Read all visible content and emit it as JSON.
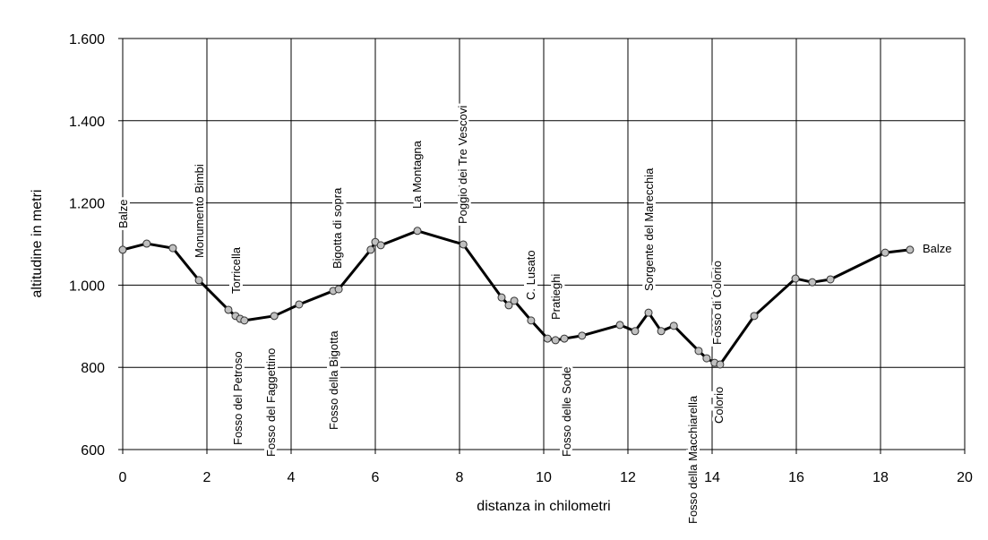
{
  "chart_data": {
    "type": "line",
    "xlabel": "distanza in chilometri",
    "ylabel": "altitudine  in metri",
    "x": [
      0,
      0.57,
      1.19,
      1.81,
      2.51,
      2.68,
      2.79,
      2.89,
      3.6,
      4.19,
      5.0,
      5.13,
      5.89,
      6.0,
      6.13,
      7.0,
      8.09,
      9.0,
      9.17,
      9.3,
      9.7,
      10.09,
      10.28,
      10.49,
      10.91,
      11.81,
      12.17,
      12.49,
      12.79,
      13.09,
      13.68,
      13.87,
      14.06,
      14.19,
      15.0,
      15.98,
      16.38,
      16.81,
      18.11,
      18.7
    ],
    "series": [
      {
        "color": "#000000",
        "marker_color": "#c0c0c0",
        "values": [
          1086,
          1101,
          1090,
          1012,
          940,
          925,
          918,
          914,
          925,
          953,
          986,
          990,
          1086,
          1105,
          1097,
          1132,
          1099,
          970,
          951,
          962,
          914,
          870,
          866,
          870,
          877,
          903,
          888,
          933,
          888,
          901,
          840,
          822,
          811,
          807,
          925,
          1016,
          1007,
          1014,
          1079,
          1086
        ]
      }
    ],
    "xlim": [
      0,
      20
    ],
    "xticks": [
      0,
      2,
      4,
      6,
      8,
      10,
      12,
      14,
      16,
      18,
      20
    ],
    "ylim": [
      600,
      1600
    ],
    "yticks": [
      600,
      800,
      {
        "value": 1000,
        "label": "1.000"
      },
      {
        "value": 1200,
        "label": "1.200"
      },
      {
        "value": 1400,
        "label": "1.400"
      },
      {
        "value": 1600,
        "label": "1.600"
      }
    ],
    "grid": true,
    "annotations": [
      "Balze",
      "Monumento Bimbi",
      "Torricella",
      "Fosso del Petroso",
      "Fosso del Faggettino",
      "Bigotta di sopra",
      "Fosso della Bigotta",
      "La Montagna",
      "Poggio dei Tre Vescovi",
      "C. Lusato",
      "Pratieghi",
      "Fosso delle Sode",
      "Sorgente del Marecchia",
      "Fosso della Macchiarella",
      "Fosso di Colorio",
      "Colorio",
      "Balze"
    ]
  }
}
